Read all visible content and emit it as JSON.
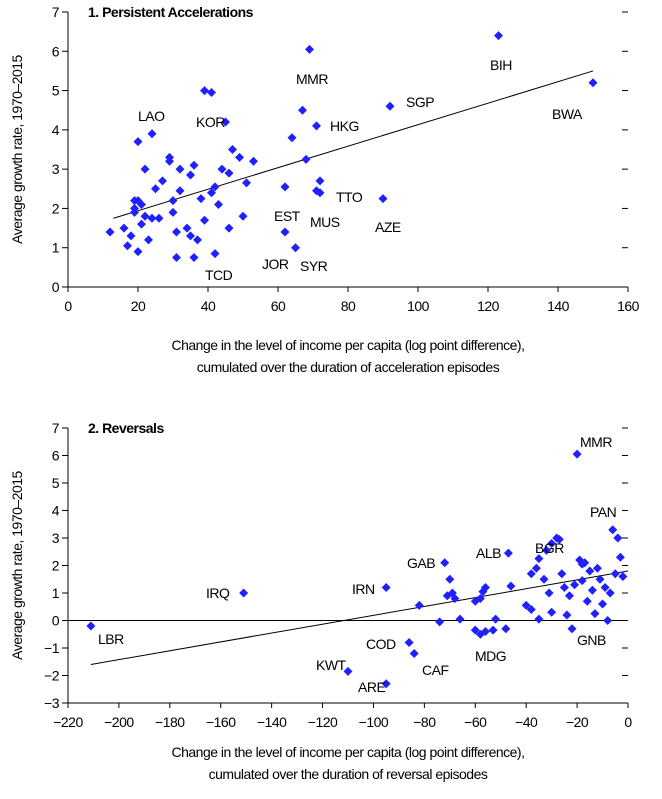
{
  "chart_data": [
    {
      "type": "scatter",
      "title": "1. Persistent Accelerations",
      "ylabel": "Average growth rate, 1970–2015",
      "xlabel": [
        "Change in the level of income per capita (log point difference),",
        "cumulated over the duration of acceleration episodes"
      ],
      "color": "#2020ff",
      "x": [
        12,
        16,
        17,
        18,
        19,
        19,
        19,
        20,
        20,
        20,
        21,
        21,
        22,
        22,
        23,
        24,
        24,
        25,
        26,
        27,
        29,
        29,
        30,
        30,
        31,
        31,
        32,
        32,
        34,
        35,
        35,
        36,
        37,
        36,
        38,
        39,
        39,
        41,
        41,
        42,
        42,
        43,
        44,
        45,
        46,
        46,
        47,
        49,
        50,
        51,
        53,
        62,
        62,
        64,
        65,
        67,
        68,
        69,
        71,
        72,
        72,
        71,
        90,
        92,
        123,
        150
      ],
      "values": [
        1.4,
        1.5,
        1.05,
        1.3,
        2.2,
        2.0,
        1.9,
        3.7,
        2.2,
        0.9,
        2.1,
        1.6,
        1.8,
        3.0,
        1.2,
        3.9,
        1.75,
        2.5,
        1.75,
        2.7,
        3.2,
        3.3,
        2.2,
        1.9,
        1.4,
        0.75,
        3.0,
        2.45,
        1.5,
        2.85,
        1.3,
        3.1,
        1.2,
        0.75,
        2.25,
        5.0,
        1.7,
        4.95,
        2.4,
        0.85,
        2.55,
        2.1,
        3.0,
        4.2,
        2.9,
        1.5,
        3.5,
        3.3,
        1.8,
        2.65,
        3.2,
        2.55,
        1.4,
        3.8,
        1.0,
        4.5,
        3.25,
        6.05,
        4.1,
        2.7,
        2.4,
        2.45,
        2.25,
        4.6,
        6.4,
        5.2
      ],
      "trend_line": {
        "x": [
          13,
          150
        ],
        "y": [
          1.75,
          5.5
        ]
      },
      "annotations": [
        "LAO",
        "KOR",
        "MMR",
        "BIH",
        "SGP",
        "HKG",
        "BWA",
        "TTO",
        "EST",
        "MUS",
        "AZE",
        "JOR",
        "SYR",
        "TCD"
      ],
      "xlim": [
        0,
        160
      ],
      "xticks": [
        0,
        20,
        40,
        60,
        80,
        100,
        120,
        140,
        160
      ],
      "ylim": [
        0,
        7
      ],
      "yticks": [
        0,
        1,
        2,
        3,
        4,
        5,
        6,
        7
      ]
    },
    {
      "type": "scatter",
      "title": "2. Reversals",
      "ylabel": "Average growth rate, 1970–2015",
      "xlabel": [
        "Change in the level of income per capita (log point difference),",
        "cumulated over the duration of reversal episodes"
      ],
      "color": "#2020ff",
      "x": [
        -211,
        -151,
        -95,
        -110,
        -95,
        -86,
        -84,
        -82,
        -72,
        -70,
        -71,
        -69,
        -68,
        -66,
        -74,
        -60,
        -58,
        -57,
        -60,
        -58,
        -56,
        -53,
        -56,
        -52,
        -47,
        -46,
        -48,
        -40,
        -38,
        -38,
        -36,
        -35,
        -33,
        -32,
        -31,
        -30,
        -28,
        -27,
        -26,
        -25,
        -24,
        -23,
        -22,
        -21,
        -20,
        -19,
        -18,
        -17,
        -16,
        -15,
        -14,
        -13,
        -12,
        -11,
        -10,
        -9,
        -8,
        -7,
        -6,
        -5,
        -4,
        -3,
        -2,
        -18,
        -30,
        -35
      ],
      "values": [
        -0.2,
        1.0,
        1.2,
        -1.85,
        -2.3,
        -0.8,
        -1.2,
        0.55,
        2.1,
        1.5,
        0.9,
        1.0,
        0.8,
        0.05,
        -0.05,
        0.7,
        0.8,
        1.05,
        -0.35,
        -0.5,
        -0.4,
        -0.35,
        1.2,
        0.05,
        2.45,
        1.25,
        -0.3,
        0.55,
        0.4,
        1.7,
        1.9,
        2.25,
        1.5,
        2.55,
        1.0,
        2.8,
        3.0,
        2.95,
        1.7,
        1.2,
        0.2,
        0.9,
        -0.3,
        1.3,
        6.05,
        2.2,
        1.45,
        2.1,
        0.7,
        1.8,
        1.1,
        0.25,
        1.9,
        1.5,
        0.6,
        1.2,
        0.0,
        1.0,
        3.3,
        1.7,
        3.0,
        2.3,
        1.6,
        2.05,
        0.3,
        0.05
      ],
      "trend_line": {
        "x": [
          -211,
          0
        ],
        "y": [
          -1.6,
          1.8
        ]
      },
      "reference_line": 0,
      "annotations": [
        "MMR",
        "BGR",
        "PAN",
        "ALB",
        "GAB",
        "IRN",
        "IRQ",
        "LBR",
        "COD",
        "KWT",
        "ARE",
        "CAF",
        "MDG",
        "GNB"
      ],
      "xlim": [
        -220,
        0
      ],
      "xticks": [
        {
          "value": -220,
          "label": "−220"
        },
        {
          "value": -200,
          "label": "−200"
        },
        {
          "value": -180,
          "label": "−180"
        },
        {
          "value": -160,
          "label": "−160"
        },
        {
          "value": -140,
          "label": "−140"
        },
        {
          "value": -120,
          "label": "−120"
        },
        {
          "value": -100,
          "label": "−100"
        },
        {
          "value": -80,
          "label": "−80"
        },
        {
          "value": -60,
          "label": "−60"
        },
        {
          "value": -40,
          "label": "−40"
        },
        {
          "value": -20,
          "label": "−20"
        },
        0
      ],
      "ylim": [
        -3,
        7
      ],
      "yticks": [
        {
          "value": -3,
          "label": "−3"
        },
        {
          "value": -2,
          "label": "−2"
        },
        {
          "value": -1,
          "label": "−1"
        },
        0,
        1,
        2,
        3,
        4,
        5,
        6,
        7
      ]
    }
  ]
}
